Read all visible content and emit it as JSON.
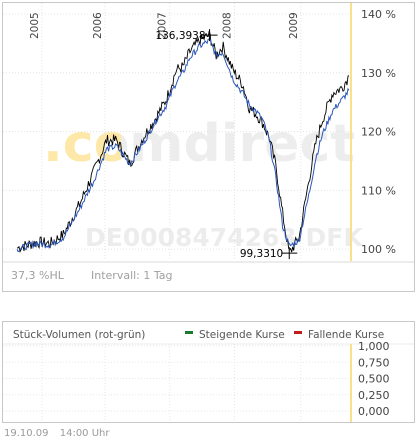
{
  "chart_data": {
    "type": "line",
    "watermark_logo": ".comdirect",
    "watermark_isin": "DE0008474263 DFK",
    "x_ticks": [
      "2005",
      "2006",
      "2007",
      "2008",
      "2009"
    ],
    "y_ticks": [
      "140 %",
      "130 %",
      "120 %",
      "110 %",
      "100 %"
    ],
    "ylim": [
      98.5,
      140.5
    ],
    "annotations": {
      "high_label": "136,3938",
      "high_value": 136.3938,
      "low_label": "99,3310",
      "low_value": 99.331
    },
    "series": [
      {
        "color": "#000000",
        "t": [
          0,
          0.06,
          0.1,
          0.14,
          0.19,
          0.23,
          0.27,
          0.3,
          0.34,
          0.38,
          0.42,
          0.45,
          0.48,
          0.5,
          0.52,
          0.55,
          0.58,
          0.6,
          0.62,
          0.65,
          0.68,
          0.7,
          0.72,
          0.74,
          0.76,
          0.78,
          0.8,
          0.82,
          0.85,
          0.88,
          0.9,
          0.92,
          0.95,
          0.98,
          1.0
        ],
        "values": [
          100.2,
          101.2,
          101,
          102.5,
          107.8,
          113,
          118.5,
          118.5,
          114.5,
          119,
          122.5,
          125.5,
          130.5,
          131,
          133.5,
          135.5,
          136.4,
          133,
          134.5,
          130.5,
          128,
          124,
          123,
          121.5,
          119,
          114,
          106,
          99.3,
          102,
          112,
          118,
          122,
          126.5,
          127.5,
          129.5
        ]
      },
      {
        "color": "#2b56b8",
        "t": [
          0,
          0.06,
          0.1,
          0.14,
          0.19,
          0.23,
          0.27,
          0.3,
          0.34,
          0.38,
          0.42,
          0.45,
          0.48,
          0.5,
          0.52,
          0.55,
          0.58,
          0.6,
          0.62,
          0.65,
          0.68,
          0.7,
          0.72,
          0.74,
          0.76,
          0.78,
          0.8,
          0.82,
          0.85,
          0.88,
          0.9,
          0.92,
          0.95,
          0.98,
          1.0
        ],
        "values": [
          100,
          101,
          100.7,
          102,
          107,
          111.5,
          117,
          117.5,
          114.5,
          118,
          122,
          124.5,
          128.5,
          130,
          132.5,
          134.5,
          135.5,
          133,
          133.5,
          129,
          126.5,
          124.5,
          123.5,
          122,
          118.5,
          112,
          104,
          100.5,
          101.5,
          109.5,
          115.5,
          119.5,
          123.5,
          125.5,
          127
        ]
      }
    ]
  },
  "info": {
    "change": "37,3 %HL",
    "interval": "Intervall: 1 Tag"
  },
  "volume": {
    "title": "Stück-Volumen (rot-grün)",
    "legend_up": "Steigende Kurse",
    "legend_down": "Fallende Kurse",
    "color_up": "#1a7a2e",
    "color_down": "#c41a1a",
    "y_ticks": [
      "1,000",
      "0,750",
      "0,500",
      "0,250",
      "0,000"
    ]
  },
  "footer": {
    "date": "19.10.09",
    "time": "14:00 Uhr"
  }
}
